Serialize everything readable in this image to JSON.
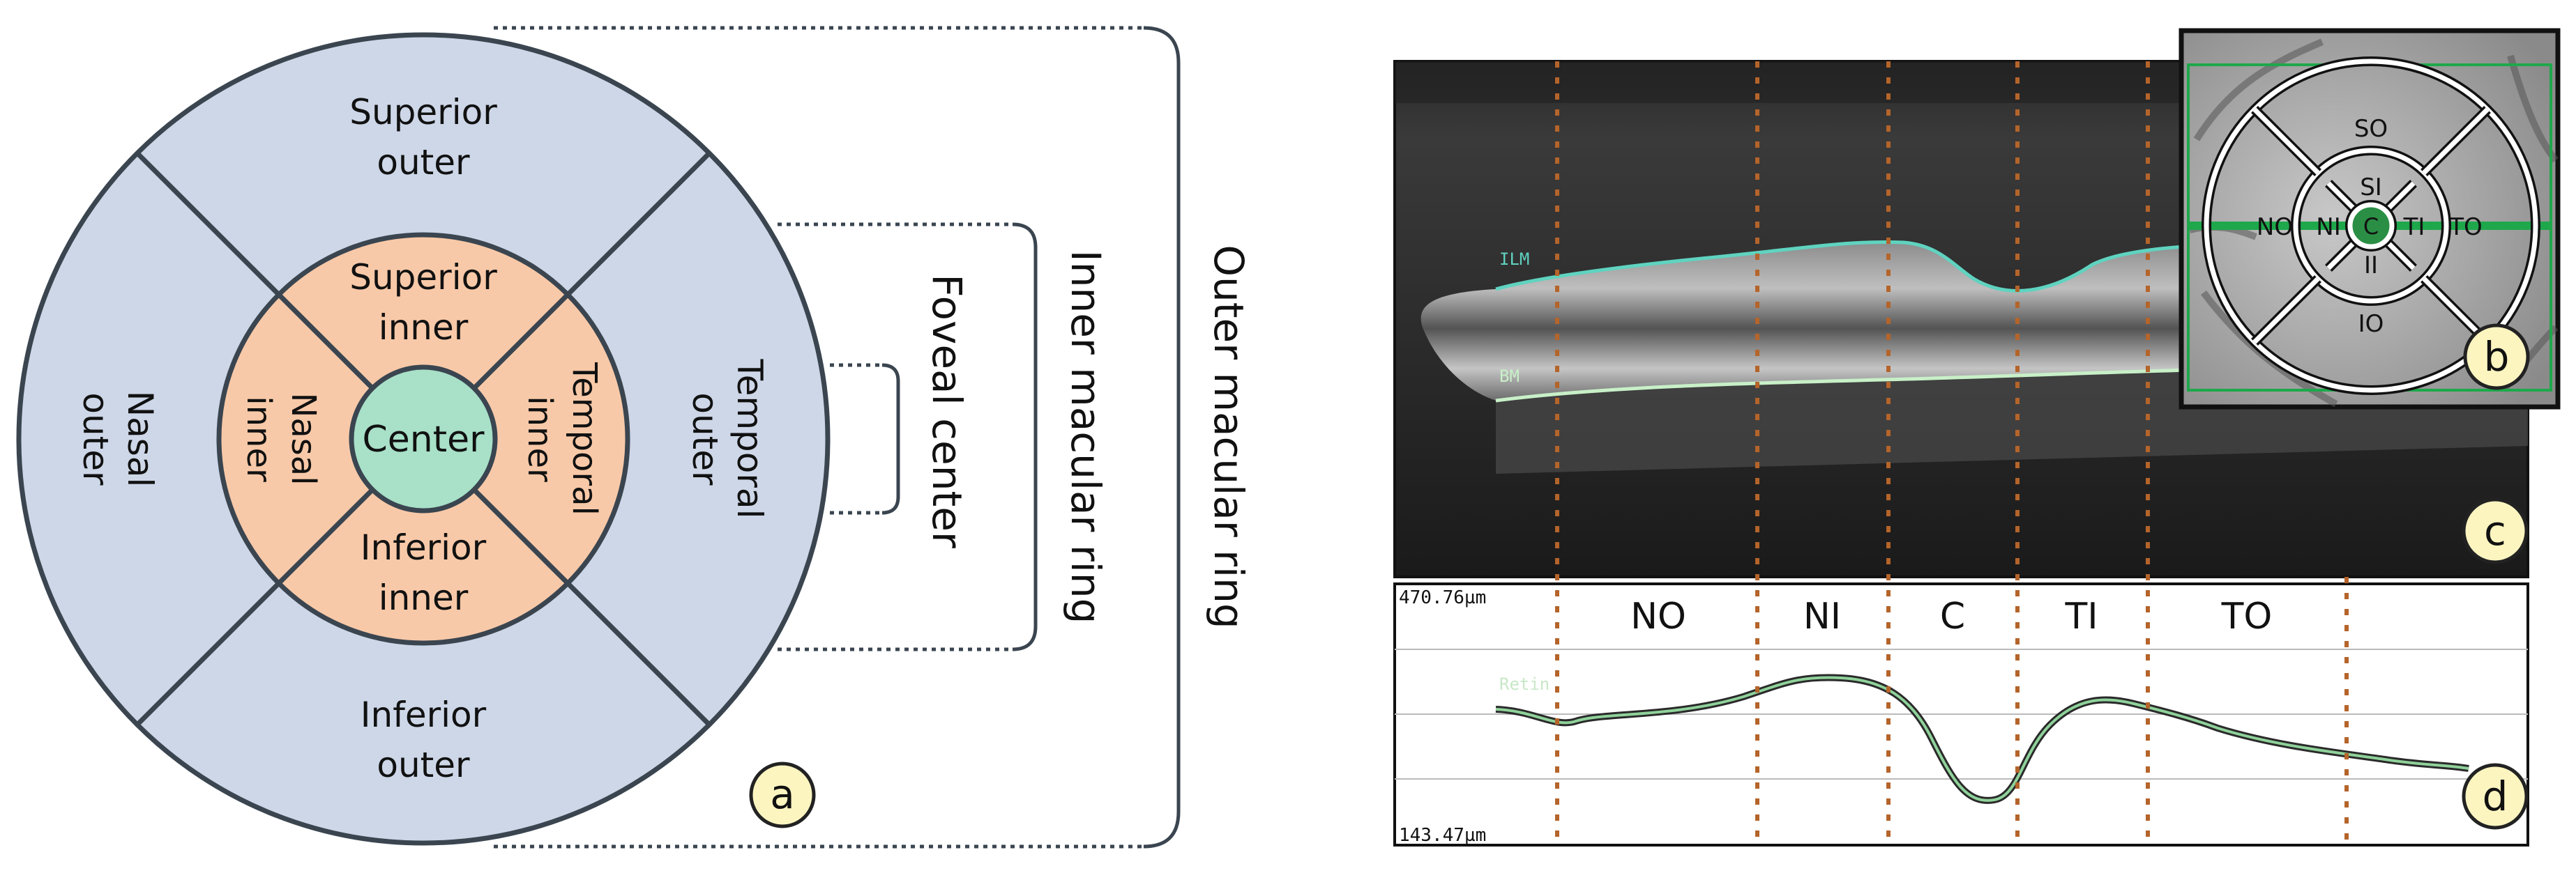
{
  "panel_a": {
    "regions": {
      "superior_outer": [
        "Superior",
        "outer"
      ],
      "nasal_outer": [
        "Nasal",
        "outer"
      ],
      "temporal_outer": [
        "Temporal",
        "outer"
      ],
      "inferior_outer": [
        "Inferior",
        "outer"
      ],
      "superior_inner": [
        "Superior",
        "inner"
      ],
      "nasal_inner": [
        "Nasal",
        "inner"
      ],
      "temporal_inner": [
        "Temporal",
        "inner"
      ],
      "inferior_inner": [
        "Inferior",
        "inner"
      ],
      "center": "Center"
    },
    "brackets": {
      "foveal_center": "Foveal center",
      "inner_ring": "Inner macular ring",
      "outer_ring": "Outer macular ring"
    },
    "badge": "a"
  },
  "panel_b": {
    "labels": {
      "so": "SO",
      "si": "SI",
      "no": "NO",
      "ni": "NI",
      "c": "C",
      "ti": "TI",
      "to": "TO",
      "ii": "II",
      "io": "IO"
    },
    "badge": "b"
  },
  "panel_c": {
    "layer_labels": {
      "ilm": "ILM",
      "bm": "BM"
    },
    "badge": "c"
  },
  "panel_d": {
    "y_max_label": "470.76µm",
    "y_min_label": "143.47µm",
    "series_label": "Retin",
    "sector_labels": [
      "NO",
      "NI",
      "C",
      "TI",
      "TO"
    ],
    "badge": "d"
  },
  "colors": {
    "outer_ring": "#cdd7e8",
    "inner_ring": "#f8c9a8",
    "center": "#a8e0c8",
    "ring_stroke": "#3a4550",
    "badge_fill": "#fdf5c0",
    "divider": "#b5642a",
    "ilm_line": "#5fd3c0",
    "bm_line": "#c8f0c8",
    "profile_line": "#7fae87",
    "etdrs_green": "#1ea84b"
  }
}
